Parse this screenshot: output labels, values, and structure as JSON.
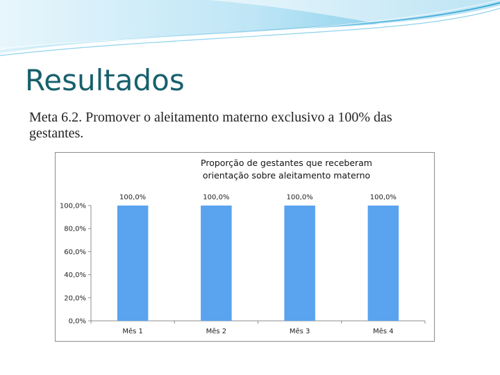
{
  "slide": {
    "title": "Resultados",
    "subtitle": "Meta 6.2. Promover o aleitamento materno exclusivo a 100% das gestantes."
  },
  "colors": {
    "title": "#17606d",
    "bar": "#5aa3ef",
    "wave_light": "#bfe6f6",
    "wave_dark": "#6cc3e6"
  },
  "chart_data": {
    "type": "bar",
    "title": "Proporção de gestantes que receberam orientação sobre aleitamento materno",
    "categories": [
      "Mês 1",
      "Mês 2",
      "Mês 3",
      "Mês 4"
    ],
    "values": [
      100,
      100,
      100,
      100
    ],
    "value_labels": [
      "100,0%",
      "100,0%",
      "100,0%",
      "100,0%"
    ],
    "y_ticks": [
      0,
      20,
      40,
      60,
      80,
      100
    ],
    "y_tick_labels": [
      "0,0%",
      "20,0%",
      "40,0%",
      "60,0%",
      "80,0%",
      "100,0%"
    ],
    "ylim": [
      0,
      100
    ],
    "grid": false,
    "legend": "none"
  }
}
